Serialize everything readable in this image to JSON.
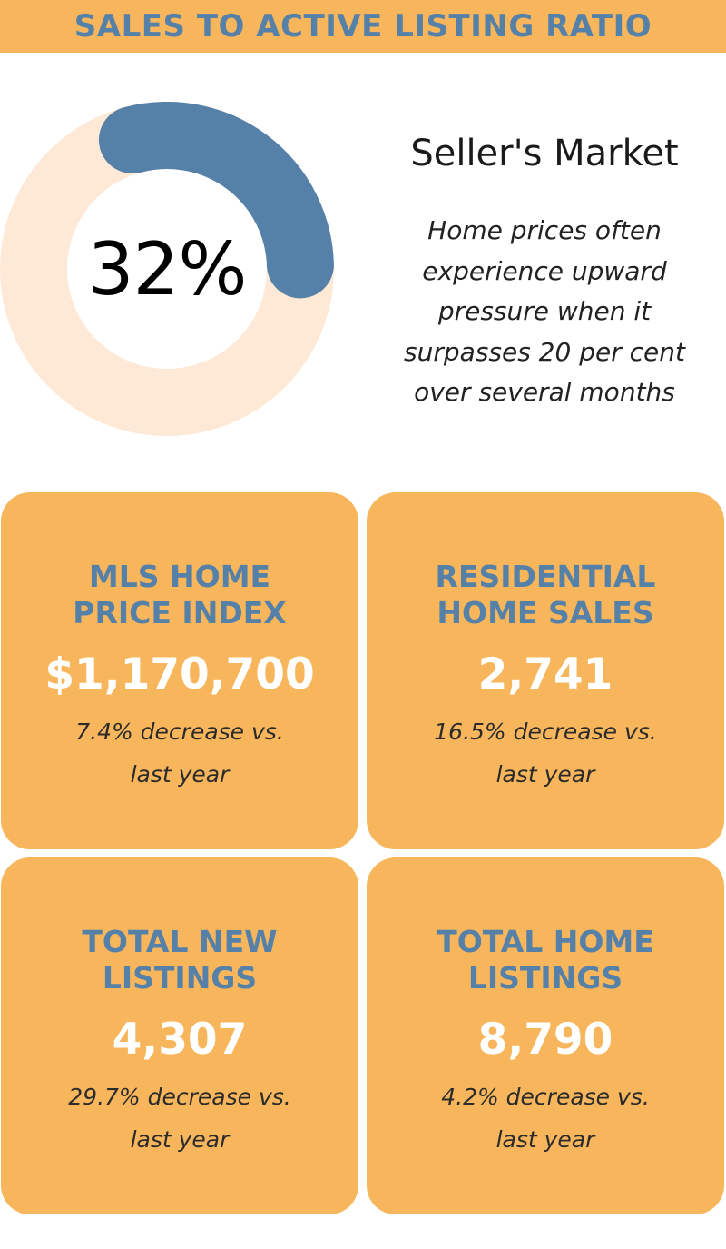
{
  "header": {
    "title": "SALES TO ACTIVE LISTING RATIO"
  },
  "colors": {
    "accent_orange": "#F8B65C",
    "accent_blue": "#5580A8",
    "donut_track": "#FDE9D5"
  },
  "chart_data": {
    "type": "pie",
    "variant": "donut",
    "values": [
      32,
      68
    ],
    "center_label": "32%"
  },
  "market": {
    "heading": "Seller's Market",
    "description_lines": [
      "Home prices often",
      "experience upward",
      "pressure when it",
      "surpasses 20 per cent",
      "over several months"
    ]
  },
  "cards": [
    {
      "title_lines": [
        "MLS HOME",
        "PRICE INDEX"
      ],
      "value": "$1,170,700",
      "note_lines": [
        "7.4% decrease vs.",
        "last year"
      ]
    },
    {
      "title_lines": [
        "RESIDENTIAL",
        "HOME SALES"
      ],
      "value": "2,741",
      "note_lines": [
        "16.5% decrease vs.",
        "last year"
      ]
    },
    {
      "title_lines": [
        "TOTAL NEW",
        "LISTINGS"
      ],
      "value": "4,307",
      "note_lines": [
        "29.7% decrease vs.",
        "last year"
      ]
    },
    {
      "title_lines": [
        "TOTAL HOME",
        "LISTINGS"
      ],
      "value": "8,790",
      "note_lines": [
        "4.2% decrease vs.",
        "last year"
      ]
    }
  ]
}
